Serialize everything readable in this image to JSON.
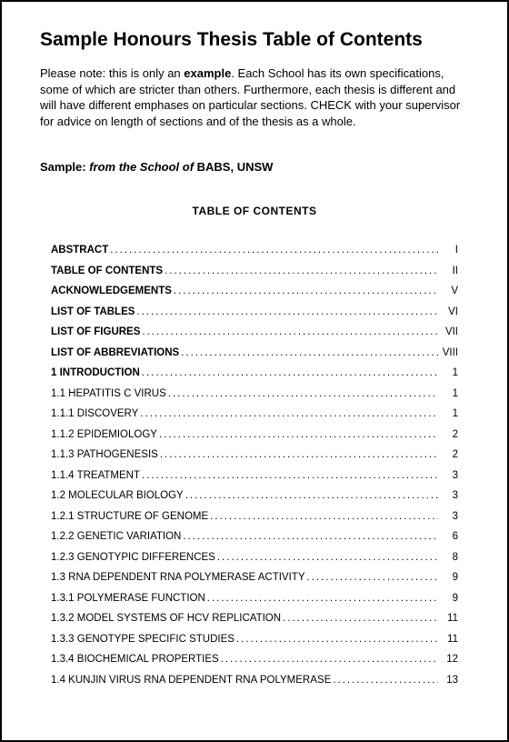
{
  "title": "Sample Honours Thesis Table of Contents",
  "note_parts": {
    "prefix": "Please note: this is only an ",
    "bold": "example",
    "suffix": ".  Each School has its own specifications, some of which are stricter than others.  Furthermore, each thesis is different and will have different emphases on particular sections.  CHECK with your supervisor for advice on length of sections and of the thesis as a whole."
  },
  "sample_line": {
    "label": "Sample: ",
    "ital": "from the School of",
    "rest": " BABS,  UNSW"
  },
  "toc_heading": "TABLE OF CONTENTS",
  "entries": [
    {
      "label": "ABSTRACT",
      "page": "I",
      "bold": true
    },
    {
      "label": "TABLE OF CONTENTS",
      "page": "II",
      "bold": true
    },
    {
      "label": "ACKNOWLEDGEMENTS",
      "page": "V",
      "bold": true
    },
    {
      "label": "LIST OF TABLES",
      "page": "VI",
      "bold": true
    },
    {
      "label": "LIST OF FIGURES",
      "page": "VII",
      "bold": true
    },
    {
      "label": "LIST OF ABBREVIATIONS",
      "page": "VIII",
      "bold": true
    },
    {
      "label": "1 INTRODUCTION",
      "page": "1",
      "bold": true
    },
    {
      "label": "1.1 HEPATITIS C VIRUS",
      "page": "1",
      "bold": false
    },
    {
      "label": "1.1.1 DISCOVERY",
      "page": "1",
      "bold": false
    },
    {
      "label": "1.1.2 EPIDEMIOLOGY",
      "page": "2",
      "bold": false
    },
    {
      "label": "1.1.3 PATHOGENESIS",
      "page": "2",
      "bold": false
    },
    {
      "label": "1.1.4 TREATMENT",
      "page": "3",
      "bold": false
    },
    {
      "label": "1.2 MOLECULAR BIOLOGY",
      "page": "3",
      "bold": false
    },
    {
      "label": "1.2.1 STRUCTURE OF GENOME",
      "page": "3",
      "bold": false
    },
    {
      "label": "1.2.2 GENETIC VARIATION",
      "page": "6",
      "bold": false
    },
    {
      "label": "1.2.3 GENOTYPIC DIFFERENCES",
      "page": "8",
      "bold": false
    },
    {
      "label": "1.3 RNA DEPENDENT RNA POLYMERASE ACTIVITY",
      "page": "9",
      "bold": false
    },
    {
      "label": "1.3.1 POLYMERASE FUNCTION",
      "page": "9",
      "bold": false
    },
    {
      "label": "1.3.2 MODEL SYSTEMS OF HCV REPLICATION",
      "page": "11",
      "bold": false
    },
    {
      "label": "1.3.3 GENOTYPE SPECIFIC STUDIES",
      "page": "11",
      "bold": false
    },
    {
      "label": "1.3.4 BIOCHEMICAL PROPERTIES",
      "page": "12",
      "bold": false
    },
    {
      "label": "1.4 KUNJIN VIRUS RNA DEPENDENT RNA POLYMERASE",
      "page": "13",
      "bold": false
    }
  ]
}
